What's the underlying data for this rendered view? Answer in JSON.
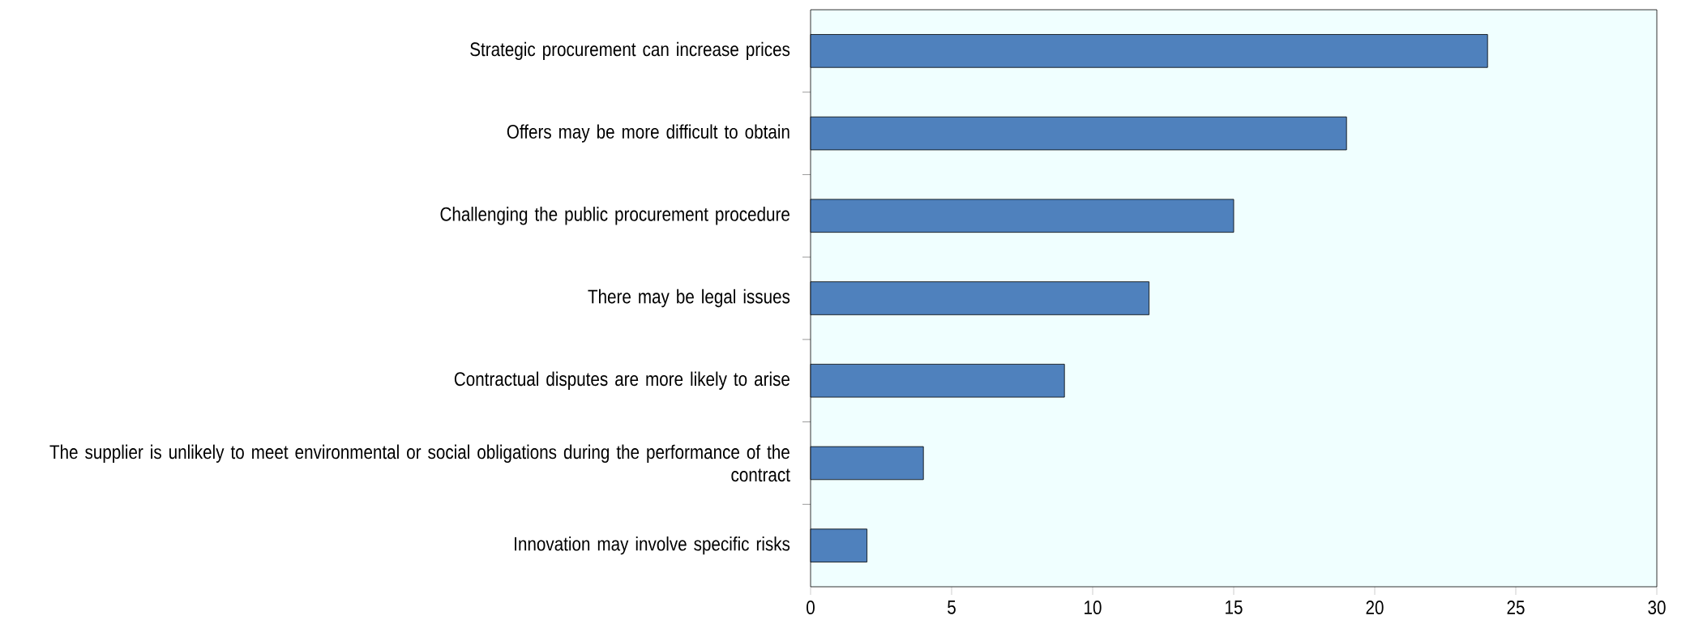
{
  "chart_data": {
    "type": "bar",
    "orientation": "horizontal",
    "categories": [
      "Strategic procurement can increase prices",
      "Offers may be more difficult to obtain",
      "Challenging the public procurement procedure",
      "There may be legal issues",
      "Contractual disputes are more likely to arise",
      "The supplier is unlikely to meet environmental or social obligations during the performance of the contract",
      "Innovation may involve specific risks"
    ],
    "values": [
      24,
      19,
      15,
      12,
      9,
      4,
      2
    ],
    "color": "#4f81bd",
    "xlim": [
      0,
      30
    ],
    "xticks": [
      {
        "value": 0,
        "label": "0"
      },
      {
        "value": 5,
        "label": "5"
      },
      {
        "value": 10,
        "label": "10"
      },
      {
        "value": 15,
        "label": "15"
      },
      {
        "value": 20,
        "label": "20"
      },
      {
        "value": 25,
        "label": "25"
      },
      {
        "value": 30,
        "label": "30"
      }
    ]
  }
}
